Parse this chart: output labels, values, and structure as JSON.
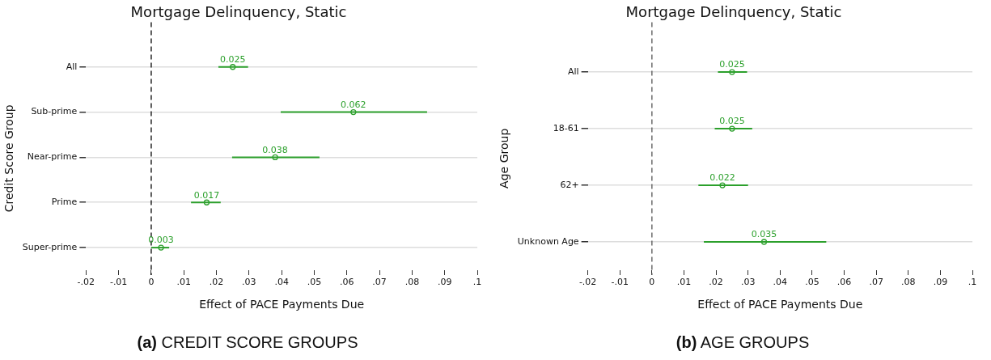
{
  "chart_data": [
    {
      "type": "scatter",
      "orientation": "horizontal",
      "title": "Mortgage Delinquency, Static",
      "xlabel": "Effect of PACE Payments Due",
      "ylabel": "Credit Score Group",
      "categories": [
        "All",
        "Sub-prime",
        "Near-prime",
        "Prime",
        "Super-prime"
      ],
      "series": [
        {
          "color": "#2ca02c",
          "values": [
            0.025,
            0.062,
            0.038,
            0.017,
            0.003
          ],
          "errors": [
            [
              0.0206,
              0.0297
            ],
            [
              0.0397,
              0.0846
            ],
            [
              0.0248,
              0.0516
            ],
            [
              0.0122,
              0.0213
            ],
            [
              0.0,
              0.0055
            ]
          ]
        }
      ],
      "data_labels": true,
      "marker": "circle",
      "grid": "y",
      "legend": false,
      "xlim": [
        -0.02,
        0.1
      ],
      "xticks": [
        {
          "value": -0.02,
          "label": "-.02"
        },
        {
          "value": -0.01,
          "label": "-.01"
        },
        0,
        {
          "value": 0.01,
          "label": ".01"
        },
        {
          "value": 0.02,
          "label": ".02"
        },
        {
          "value": 0.03,
          "label": ".03"
        },
        {
          "value": 0.04,
          "label": ".04"
        },
        {
          "value": 0.05,
          "label": ".05"
        },
        {
          "value": 0.06,
          "label": ".06"
        },
        {
          "value": 0.07,
          "label": ".07"
        },
        {
          "value": 0.08,
          "label": ".08"
        },
        {
          "value": 0.09,
          "label": ".09"
        },
        {
          "value": 0.1,
          "label": ".1"
        }
      ],
      "ref_lines": [
        {
          "axis": "x",
          "value": 0,
          "color": "#000000",
          "line_style": "dashed"
        }
      ],
      "annotations": [
        "(a) CREDIT SCORE GROUPS"
      ]
    },
    {
      "type": "scatter",
      "orientation": "horizontal",
      "title": "Mortgage Delinquency, Static",
      "xlabel": "Effect of PACE Payments Due",
      "ylabel": "Age Group",
      "categories": [
        "All",
        "18-61",
        "62+",
        "Unknown Age"
      ],
      "series": [
        {
          "color": "#2ca02c",
          "values": [
            0.025,
            0.025,
            0.022,
            0.035
          ],
          "errors": [
            [
              0.0206,
              0.0297
            ],
            [
              0.0196,
              0.0313
            ],
            [
              0.0145,
              0.03
            ],
            [
              0.0162,
              0.0544
            ]
          ]
        }
      ],
      "data_labels": true,
      "marker": "circle",
      "grid": "y",
      "legend": false,
      "xlim": [
        -0.02,
        0.1
      ],
      "xticks": [
        {
          "value": -0.02,
          "label": "-.02"
        },
        {
          "value": -0.01,
          "label": "-.01"
        },
        0,
        {
          "value": 0.01,
          "label": ".01"
        },
        {
          "value": 0.02,
          "label": ".02"
        },
        {
          "value": 0.03,
          "label": ".03"
        },
        {
          "value": 0.04,
          "label": ".04"
        },
        {
          "value": 0.05,
          "label": ".05"
        },
        {
          "value": 0.06,
          "label": ".06"
        },
        {
          "value": 0.07,
          "label": ".07"
        },
        {
          "value": 0.08,
          "label": ".08"
        },
        {
          "value": 0.09,
          "label": ".09"
        },
        {
          "value": 0.1,
          "label": ".1"
        }
      ],
      "ref_lines": [
        {
          "axis": "x",
          "value": 0,
          "color": "#555555",
          "line_style": "dashed"
        }
      ],
      "annotations": [
        "(b) AGE GROUPS"
      ]
    }
  ]
}
